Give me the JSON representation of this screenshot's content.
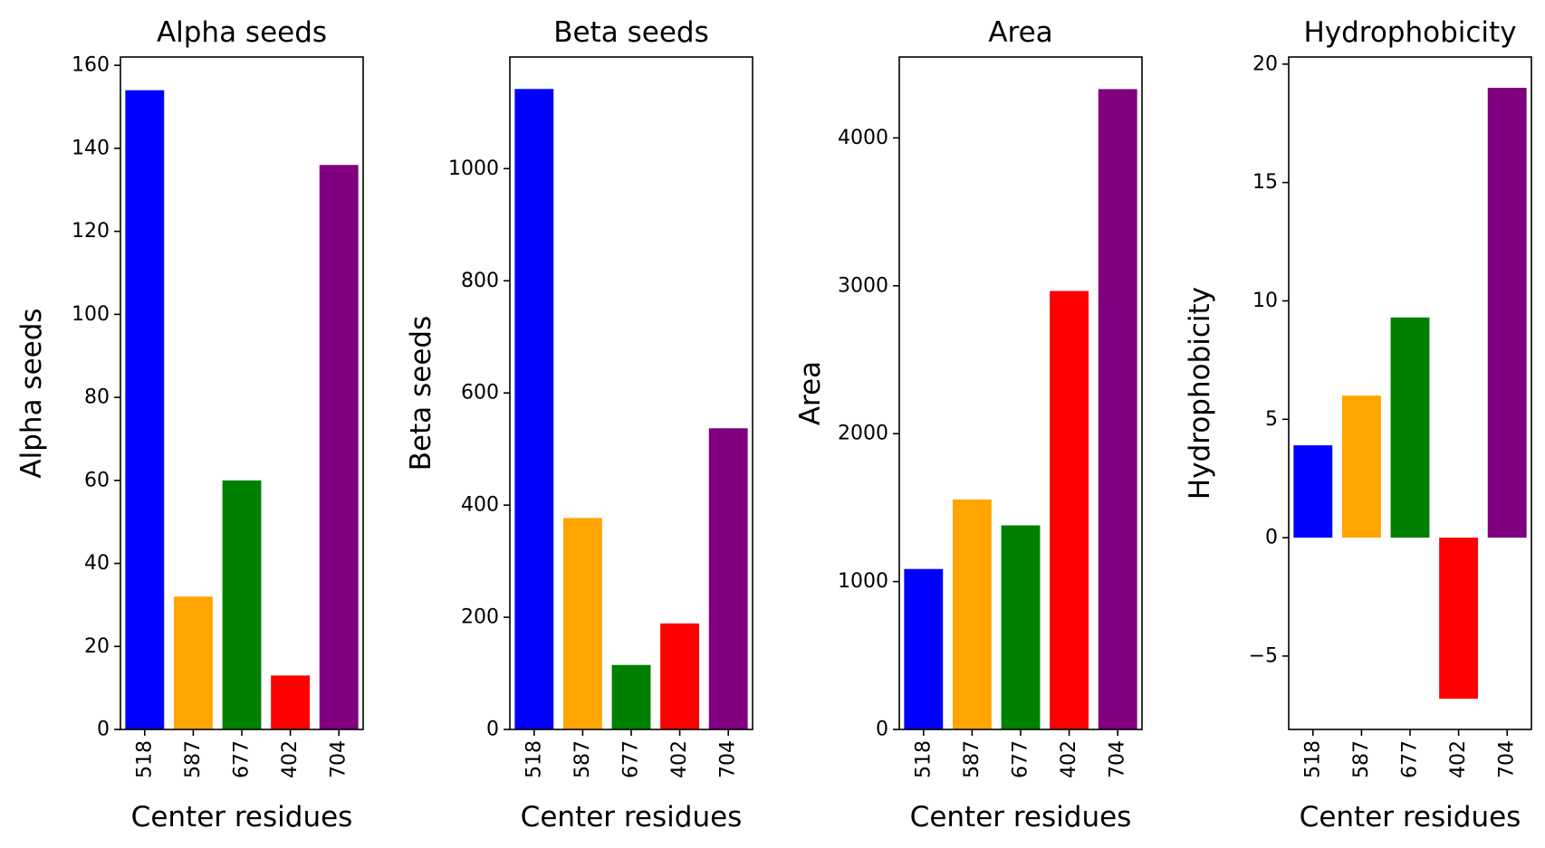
{
  "chart_data": [
    {
      "type": "bar",
      "title": "Alpha seeds",
      "xlabel": "Center residues",
      "ylabel": "Alpha seeds",
      "categories": [
        "518",
        "587",
        "677",
        "402",
        "704"
      ],
      "values": [
        154,
        32,
        60,
        13,
        136
      ],
      "colors": [
        "#0000ff",
        "#ffa500",
        "#008000",
        "#ff0000",
        "#800080"
      ],
      "ylim": [
        0,
        162
      ],
      "yticks": [
        0,
        20,
        40,
        60,
        80,
        100,
        120,
        140,
        160
      ],
      "ytick_labels": [
        "0",
        "20",
        "40",
        "60",
        "80",
        "100",
        "120",
        "140",
        "160"
      ],
      "grid": false
    },
    {
      "type": "bar",
      "title": "Beta seeds",
      "xlabel": "Center residues",
      "ylabel": "Beta seeds",
      "categories": [
        "518",
        "587",
        "677",
        "402",
        "704"
      ],
      "values": [
        1142,
        377,
        115,
        189,
        537
      ],
      "colors": [
        "#0000ff",
        "#ffa500",
        "#008000",
        "#ff0000",
        "#800080"
      ],
      "ylim": [
        0,
        1199
      ],
      "yticks": [
        0,
        200,
        400,
        600,
        800,
        1000
      ],
      "ytick_labels": [
        "0",
        "200",
        "400",
        "600",
        "800",
        "1000"
      ],
      "grid": false
    },
    {
      "type": "bar",
      "title": "Area",
      "xlabel": "Center residues",
      "ylabel": "Area",
      "categories": [
        "518",
        "587",
        "677",
        "402",
        "704"
      ],
      "values": [
        1085,
        1555,
        1380,
        2965,
        4330
      ],
      "colors": [
        "#0000ff",
        "#ffa500",
        "#008000",
        "#ff0000",
        "#800080"
      ],
      "ylim": [
        0,
        4547
      ],
      "yticks": [
        0,
        1000,
        2000,
        3000,
        4000
      ],
      "ytick_labels": [
        "0",
        "1000",
        "2000",
        "3000",
        "4000"
      ],
      "grid": false
    },
    {
      "type": "bar",
      "title": "Hydrophobicity",
      "xlabel": "Center residues",
      "ylabel": "Hydrophobicity",
      "categories": [
        "518",
        "587",
        "677",
        "402",
        "704"
      ],
      "values": [
        3.9,
        6.0,
        9.3,
        -6.8,
        19.0
      ],
      "colors": [
        "#0000ff",
        "#ffa500",
        "#008000",
        "#ff0000",
        "#800080"
      ],
      "ylim": [
        -8.1,
        20.3
      ],
      "yticks": [
        -5,
        0,
        5,
        10,
        15,
        20
      ],
      "ytick_labels": [
        "−5",
        "0",
        "5",
        "10",
        "15",
        "20"
      ],
      "grid": false
    }
  ]
}
